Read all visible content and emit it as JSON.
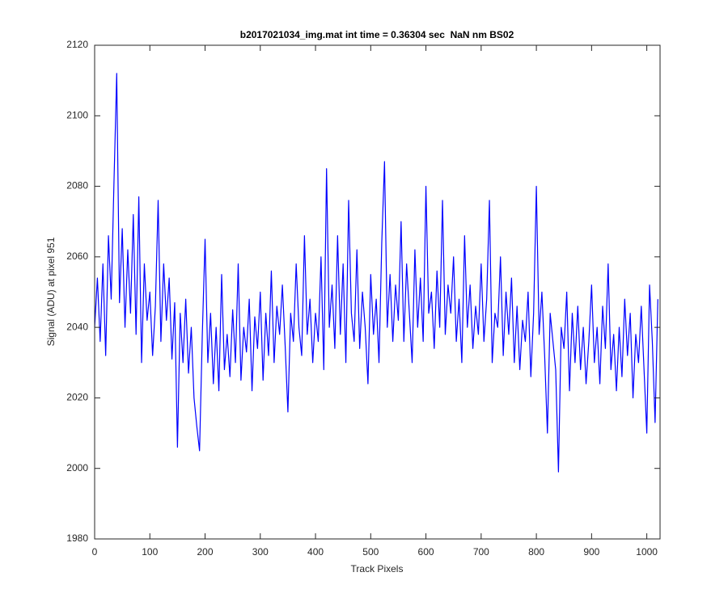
{
  "chart_data": {
    "type": "line",
    "title": "b2017021034_img.mat int time = 0.36304 sec  NaN nm BS02",
    "x_label": "Track Pixels",
    "y_label": "Signal (ADU) at pixel 951",
    "xlim": [
      0,
      1024
    ],
    "ylim": [
      1980,
      2120
    ],
    "xticks": [
      0,
      100,
      200,
      300,
      400,
      500,
      600,
      700,
      800,
      900,
      1000
    ],
    "yticks": [
      1980,
      2000,
      2020,
      2040,
      2060,
      2080,
      2100,
      2120
    ],
    "grid": false,
    "x": [
      0,
      5,
      10,
      15,
      20,
      25,
      30,
      35,
      40,
      45,
      50,
      55,
      60,
      65,
      70,
      75,
      80,
      85,
      90,
      95,
      100,
      105,
      110,
      115,
      120,
      125,
      130,
      135,
      140,
      145,
      150,
      155,
      160,
      165,
      170,
      175,
      180,
      185,
      190,
      195,
      200,
      205,
      210,
      215,
      220,
      225,
      230,
      235,
      240,
      245,
      250,
      255,
      260,
      265,
      270,
      275,
      280,
      285,
      290,
      295,
      300,
      305,
      310,
      315,
      320,
      325,
      330,
      335,
      340,
      345,
      350,
      355,
      360,
      365,
      370,
      375,
      380,
      385,
      390,
      395,
      400,
      405,
      410,
      415,
      420,
      425,
      430,
      435,
      440,
      445,
      450,
      455,
      460,
      465,
      470,
      475,
      480,
      485,
      490,
      495,
      500,
      505,
      510,
      515,
      520,
      525,
      530,
      535,
      540,
      545,
      550,
      555,
      560,
      565,
      570,
      575,
      580,
      585,
      590,
      595,
      600,
      605,
      610,
      615,
      620,
      625,
      630,
      635,
      640,
      645,
      650,
      655,
      660,
      665,
      670,
      675,
      680,
      685,
      690,
      695,
      700,
      705,
      710,
      715,
      720,
      725,
      730,
      735,
      740,
      745,
      750,
      755,
      760,
      765,
      770,
      775,
      780,
      785,
      790,
      795,
      800,
      805,
      810,
      815,
      820,
      825,
      830,
      835,
      840,
      845,
      850,
      855,
      860,
      865,
      870,
      875,
      880,
      885,
      890,
      895,
      900,
      905,
      910,
      915,
      920,
      925,
      930,
      935,
      940,
      945,
      950,
      955,
      960,
      965,
      970,
      975,
      980,
      985,
      990,
      995,
      1000,
      1005,
      1010,
      1015,
      1020
    ],
    "series": [
      {
        "name": "signal",
        "color": "#0000ff",
        "values": [
          2040,
          2054,
          2036,
          2058,
          2032,
          2066,
          2048,
          2081,
          2112,
          2047,
          2068,
          2040,
          2062,
          2044,
          2072,
          2038,
          2077,
          2030,
          2058,
          2042,
          2050,
          2032,
          2046,
          2076,
          2036,
          2058,
          2042,
          2054,
          2031,
          2047,
          2006,
          2044,
          2030,
          2048,
          2027,
          2040,
          2020,
          2012,
          2005,
          2038,
          2065,
          2030,
          2044,
          2024,
          2040,
          2022,
          2055,
          2028,
          2038,
          2026,
          2045,
          2030,
          2058,
          2025,
          2040,
          2033,
          2048,
          2022,
          2043,
          2034,
          2050,
          2025,
          2044,
          2032,
          2056,
          2030,
          2046,
          2038,
          2052,
          2035,
          2016,
          2044,
          2036,
          2058,
          2040,
          2032,
          2066,
          2038,
          2048,
          2030,
          2044,
          2036,
          2060,
          2028,
          2085,
          2040,
          2052,
          2034,
          2066,
          2038,
          2058,
          2030,
          2076,
          2044,
          2036,
          2062,
          2034,
          2050,
          2040,
          2024,
          2055,
          2038,
          2048,
          2030,
          2064,
          2087,
          2040,
          2055,
          2036,
          2052,
          2042,
          2070,
          2036,
          2058,
          2044,
          2030,
          2062,
          2040,
          2054,
          2036,
          2080,
          2044,
          2050,
          2034,
          2056,
          2040,
          2076,
          2038,
          2052,
          2044,
          2060,
          2036,
          2048,
          2030,
          2066,
          2040,
          2052,
          2034,
          2046,
          2038,
          2058,
          2036,
          2048,
          2076,
          2030,
          2044,
          2040,
          2060,
          2032,
          2050,
          2038,
          2054,
          2030,
          2046,
          2028,
          2042,
          2036,
          2050,
          2026,
          2044,
          2080,
          2038,
          2050,
          2032,
          2010,
          2044,
          2036,
          2028,
          1999,
          2040,
          2034,
          2050,
          2022,
          2044,
          2030,
          2046,
          2028,
          2040,
          2024,
          2036,
          2052,
          2030,
          2040,
          2024,
          2046,
          2034,
          2058,
          2028,
          2038,
          2022,
          2040,
          2026,
          2048,
          2032,
          2044,
          2020,
          2038,
          2030,
          2046,
          2028,
          2010,
          2052,
          2036,
          2013,
          2048
        ]
      }
    ]
  }
}
